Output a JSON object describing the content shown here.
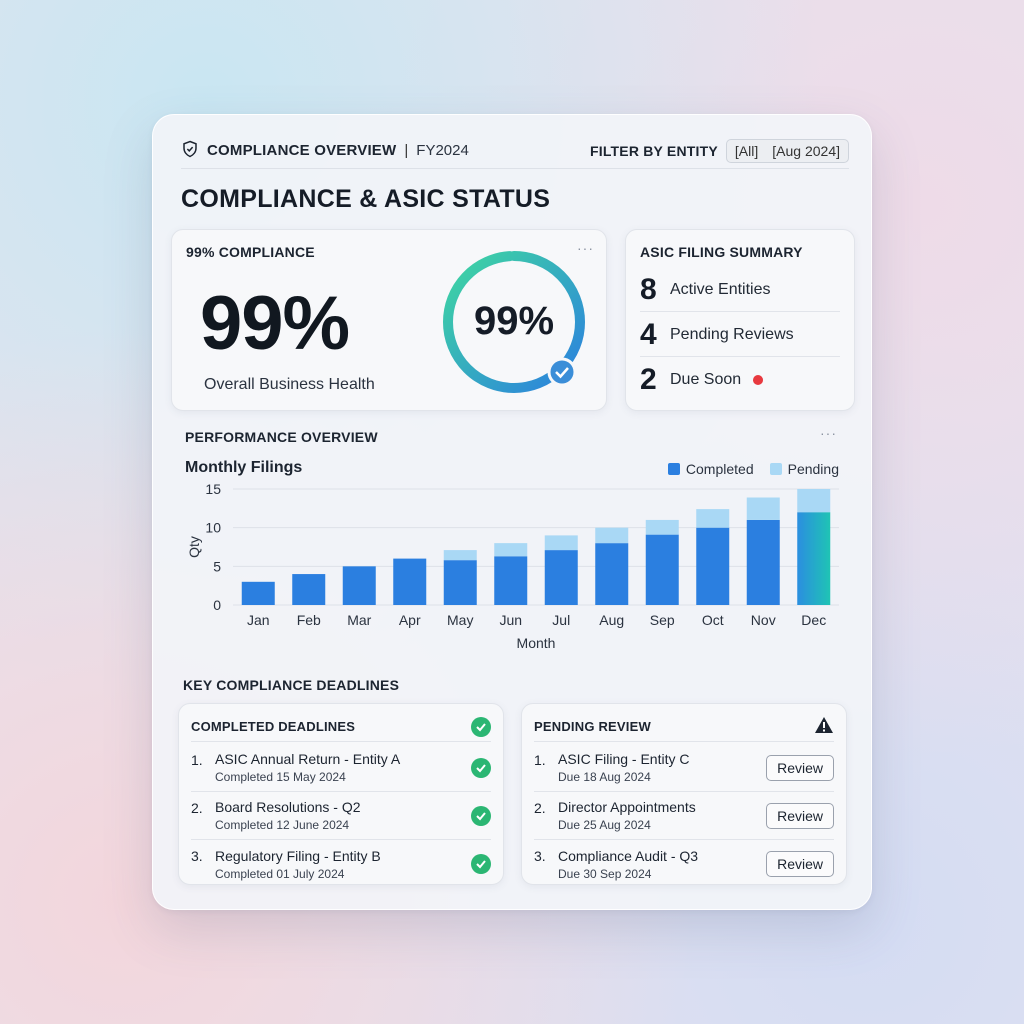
{
  "header": {
    "title": "COMPLIANCE OVERVIEW",
    "separator": "|",
    "fiscal_year": "FY2024",
    "filter_label": "FILTER BY ENTITY",
    "filter_entity": "[All]",
    "filter_date": "[Aug 2024]"
  },
  "page_title": "COMPLIANCE & ASIC STATUS",
  "health": {
    "label": "99% COMPLIANCE",
    "value": "99%",
    "donut_value": "99%",
    "donut_fraction": 0.99,
    "subtitle": "Overall Business Health",
    "menu": "···"
  },
  "asic_summary": {
    "label": "ASIC FILING SUMMARY",
    "rows": [
      {
        "count": "8",
        "text": "Active Entities"
      },
      {
        "count": "4",
        "text": "Pending Reviews"
      },
      {
        "count": "2",
        "text": "Due Soon"
      }
    ]
  },
  "performance": {
    "label": "PERFORMANCE OVERVIEW",
    "menu": "···"
  },
  "chart_data": {
    "type": "bar",
    "stacked": true,
    "title": "Monthly Filings",
    "xlabel": "Month",
    "ylabel": "Qty",
    "ylim": [
      0,
      15
    ],
    "yticks": [
      0,
      5,
      10,
      15
    ],
    "categories": [
      "Jan",
      "Feb",
      "Mar",
      "Apr",
      "May",
      "Jun",
      "Jul",
      "Aug",
      "Sep",
      "Oct",
      "Nov",
      "Dec"
    ],
    "series": [
      {
        "name": "Completed",
        "color": "#2b7fe0",
        "values": [
          3,
          4,
          5,
          6,
          5.8,
          6.3,
          7.1,
          8,
          9.1,
          10,
          11,
          12
        ]
      },
      {
        "name": "Pending",
        "color": "#a9d8f5",
        "values": [
          0,
          0,
          0,
          0,
          1.3,
          1.7,
          1.9,
          2,
          1.9,
          2.4,
          2.9,
          3
        ]
      }
    ],
    "legend": "top-right",
    "grid": true
  },
  "deadlines": {
    "label": "KEY COMPLIANCE DEADLINES",
    "completed": {
      "label": "COMPLETED DEADLINES",
      "items": [
        {
          "idx": "1.",
          "title": "ASIC Annual Return - Entity A",
          "sub": "Completed 15 May 2024"
        },
        {
          "idx": "2.",
          "title": "Board Resolutions - Q2",
          "sub": "Completed 12 June 2024"
        },
        {
          "idx": "3.",
          "title": "Regulatory Filing - Entity B",
          "sub": "Completed 01 July 2024"
        }
      ]
    },
    "pending": {
      "label": "PENDING REVIEW",
      "button_label": "Review",
      "items": [
        {
          "idx": "1.",
          "title": "ASIC Filing - Entity C",
          "sub": "Due 18 Aug 2024"
        },
        {
          "idx": "2.",
          "title": "Director Appointments",
          "sub": "Due 25 Aug 2024"
        },
        {
          "idx": "3.",
          "title": "Compliance Audit - Q3",
          "sub": "Due 30 Sep 2024"
        }
      ]
    }
  },
  "colors": {
    "accent_blue": "#2b7fe0",
    "accent_teal": "#1fc4b4",
    "success_green": "#2bb673",
    "alert_red": "#e8393f"
  }
}
